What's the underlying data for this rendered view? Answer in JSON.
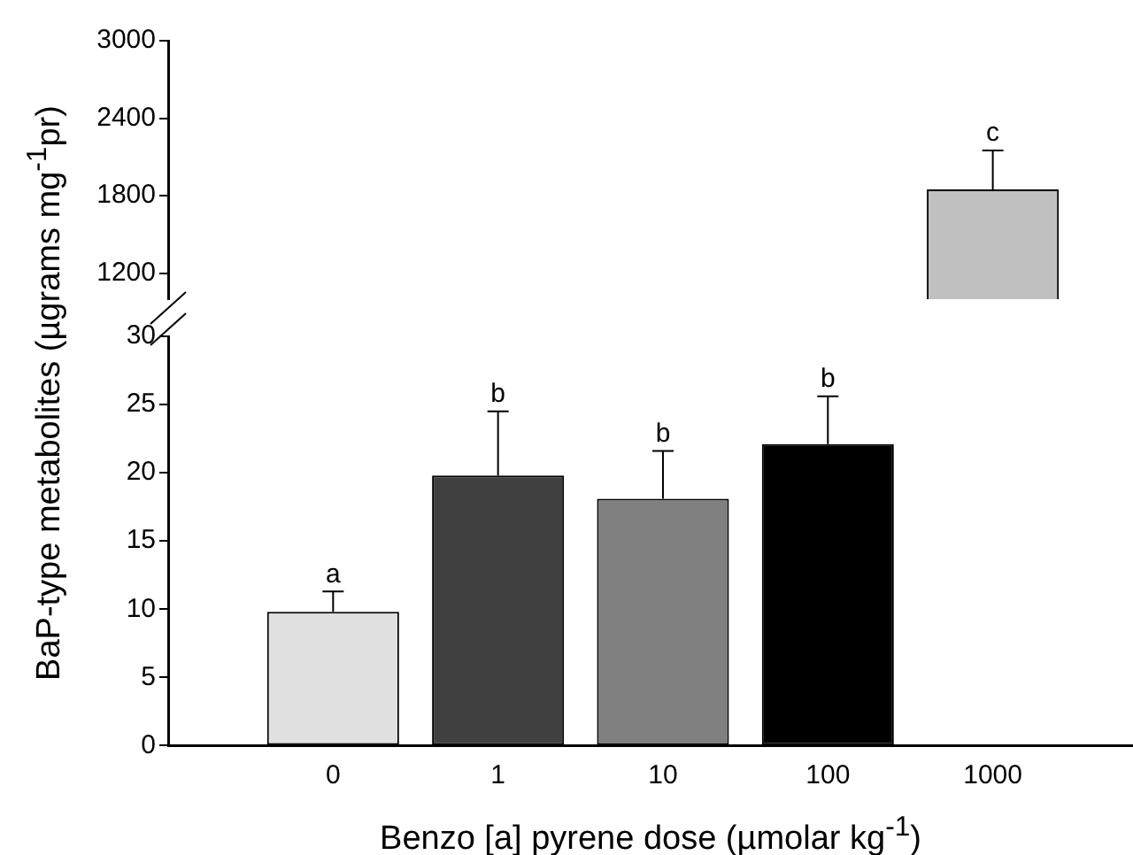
{
  "chart_data": [
    {
      "type": "bar",
      "categories": [
        "0",
        "1",
        "10",
        "100",
        "1000"
      ],
      "values": [
        null,
        null,
        null,
        null,
        1850
      ],
      "errors": [
        null,
        null,
        null,
        null,
        300
      ],
      "colors": [
        null,
        null,
        null,
        null,
        "#c0c0c0"
      ],
      "ylim": [
        1000,
        3000
      ],
      "yticks": [
        1200,
        1800,
        2400,
        3000
      ],
      "tick_labels": "y",
      "grid": false,
      "legend": false,
      "annotations": [
        {
          "text": "c",
          "x": "1000",
          "y": 2150
        }
      ]
    },
    {
      "type": "bar",
      "categories": [
        "0",
        "1",
        "10",
        "100",
        "1000"
      ],
      "values": [
        9.8,
        19.8,
        18.1,
        22.1,
        null
      ],
      "errors": [
        1.5,
        4.7,
        3.5,
        3.5,
        null
      ],
      "colors": [
        "#e0e0e0",
        "#404040",
        "#808080",
        "#000000",
        null
      ],
      "ylim": [
        0,
        30
      ],
      "yticks": [
        0,
        5,
        10,
        15,
        20,
        25,
        30
      ],
      "grid": false,
      "legend": false,
      "xlabel": "Benzo [a] pyrene dose (µmolar kg$^{-1}$)",
      "ylabel": "BaP-type metabolites (µgrams mg$^{-1}$pr)",
      "annotations": [
        {
          "text": "a",
          "x": "0",
          "y": 11.3
        },
        {
          "text": "b",
          "x": "1",
          "y": 24.5
        },
        {
          "text": "b",
          "x": "10",
          "y": 21.6
        },
        {
          "text": "b",
          "x": "100",
          "y": 25.6
        }
      ]
    }
  ]
}
